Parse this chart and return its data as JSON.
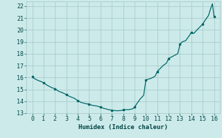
{
  "title": "",
  "xlabel": "Humidex (Indice chaleur)",
  "ylabel": "",
  "background_color": "#cceaea",
  "line_color": "#006666",
  "marker_color": "#006666",
  "grid_color": "#aacccc",
  "xlim": [
    -0.5,
    16.5
  ],
  "ylim": [
    13,
    22.4
  ],
  "xticks": [
    0,
    1,
    2,
    3,
    4,
    5,
    6,
    7,
    8,
    9,
    10,
    11,
    12,
    13,
    14,
    15,
    16
  ],
  "yticks": [
    13,
    14,
    15,
    16,
    17,
    18,
    19,
    20,
    21,
    22
  ],
  "x": [
    0.0,
    0.2,
    0.5,
    0.8,
    1.0,
    1.3,
    1.7,
    2.0,
    2.3,
    2.7,
    3.0,
    3.3,
    3.7,
    4.0,
    4.3,
    4.7,
    5.0,
    5.3,
    5.7,
    6.0,
    6.3,
    6.7,
    7.0,
    7.2,
    7.5,
    7.8,
    8.0,
    8.2,
    8.5,
    8.8,
    9.0,
    9.2,
    9.5,
    9.8,
    10.0,
    10.2,
    10.5,
    10.8,
    11.0,
    11.2,
    11.5,
    11.8,
    12.0,
    12.2,
    12.5,
    12.8,
    13.0,
    13.2,
    13.5,
    13.8,
    14.0,
    14.2,
    14.5,
    14.8,
    15.0,
    15.2,
    15.5,
    15.7,
    15.85,
    16.0
  ],
  "y": [
    16.05,
    15.9,
    15.75,
    15.65,
    15.55,
    15.35,
    15.15,
    15.05,
    14.85,
    14.7,
    14.55,
    14.4,
    14.25,
    14.05,
    13.9,
    13.8,
    13.75,
    13.65,
    13.6,
    13.5,
    13.4,
    13.3,
    13.25,
    13.22,
    13.2,
    13.22,
    13.28,
    13.3,
    13.3,
    13.35,
    13.5,
    13.8,
    14.2,
    14.5,
    15.8,
    15.85,
    15.95,
    16.1,
    16.5,
    16.7,
    17.0,
    17.2,
    17.6,
    17.7,
    17.85,
    18.0,
    18.8,
    19.0,
    19.1,
    19.5,
    19.8,
    19.7,
    20.0,
    20.3,
    20.5,
    20.8,
    21.2,
    21.8,
    22.2,
    21.1
  ],
  "marker_x": [
    0,
    1,
    2,
    3,
    4,
    5,
    6,
    7,
    8,
    9,
    10,
    11,
    12,
    13,
    14,
    15,
    16
  ],
  "marker_y": [
    16.05,
    15.55,
    15.05,
    14.55,
    14.05,
    13.75,
    13.5,
    13.25,
    13.28,
    13.5,
    15.8,
    16.5,
    17.6,
    18.8,
    19.8,
    20.5,
    21.1
  ]
}
